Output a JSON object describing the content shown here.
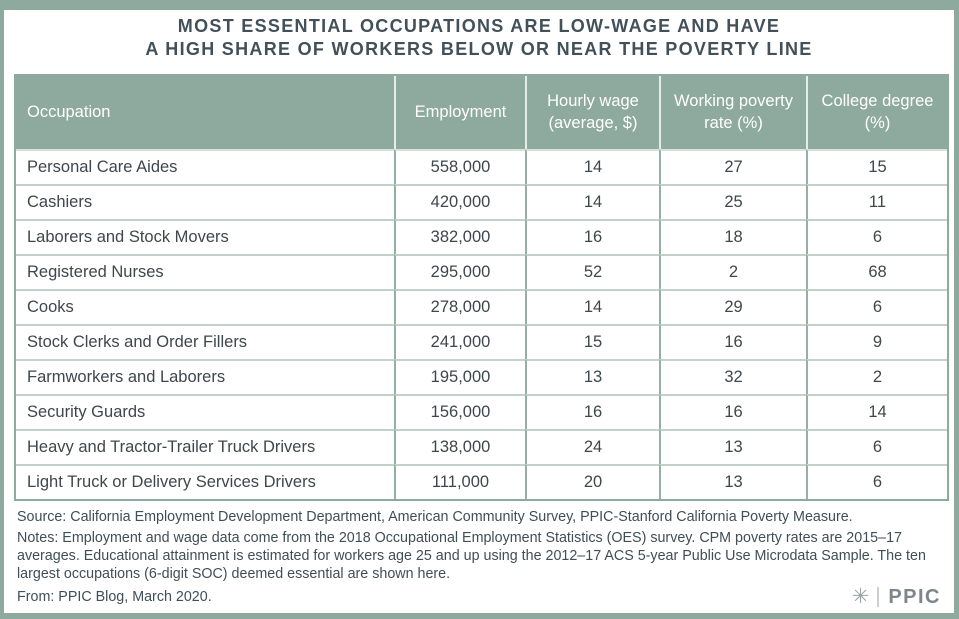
{
  "page": {
    "title_line1": "MOST ESSENTIAL OCCUPATIONS ARE LOW-WAGE AND HAVE",
    "title_line2": "A HIGH SHARE OF WORKERS BELOW OR NEAR THE POVERTY LINE"
  },
  "colors": {
    "accent_green": "#8EA99D",
    "header_text": "#FFFFFF",
    "row_divider": "#C2D1C9",
    "column_divider": "#95AFA3",
    "header_divider": "#E6EDE9",
    "text_dark": "#42505A",
    "logo_gray": "#7E868B"
  },
  "table": {
    "columns": [
      "Occupation",
      "Employment",
      "Hourly wage (average, $)",
      "Working poverty rate (%)",
      "College degree (%)"
    ],
    "rows": [
      [
        "Personal Care Aides",
        "558,000",
        "14",
        "27",
        "15"
      ],
      [
        "Cashiers",
        "420,000",
        "14",
        "25",
        "11"
      ],
      [
        "Laborers and Stock Movers",
        "382,000",
        "16",
        "18",
        "6"
      ],
      [
        "Registered Nurses",
        "295,000",
        "52",
        "2",
        "68"
      ],
      [
        "Cooks",
        "278,000",
        "14",
        "29",
        "6"
      ],
      [
        "Stock Clerks and Order Fillers",
        "241,000",
        "15",
        "16",
        "9"
      ],
      [
        "Farmworkers and Laborers",
        "195,000",
        "13",
        "32",
        "2"
      ],
      [
        "Security Guards",
        "156,000",
        "16",
        "16",
        "14"
      ],
      [
        "Heavy and Tractor-Trailer Truck Drivers",
        "138,000",
        "24",
        "13",
        "6"
      ],
      [
        "Light Truck or Delivery Services Drivers",
        "111,000",
        "20",
        "13",
        "6"
      ]
    ]
  },
  "footer": {
    "source": "Source: California Employment Development Department, American Community Survey, PPIC-Stanford California Poverty Measure.",
    "notes": "Notes: Employment and wage data come from the 2018 Occupational Employment Statistics (OES) survey.  CPM poverty rates are 2015–17 averages. Educational attainment is estimated for workers age 25 and up using the 2012–17 ACS 5-year Public Use Microdata Sample. The ten largest occupations (6-digit SOC) deemed essential are shown here.",
    "from": "From: PPIC Blog, March 2020.",
    "logo": {
      "icon": "starburst-icon",
      "glyph": "✳",
      "text": "PPIC"
    }
  },
  "chart_data": {
    "type": "table",
    "title": "MOST ESSENTIAL OCCUPATIONS ARE LOW-WAGE AND HAVE A HIGH SHARE OF WORKERS BELOW OR NEAR THE POVERTY LINE",
    "columns": [
      "Occupation",
      "Employment",
      "Hourly wage (average, $)",
      "Working poverty rate (%)",
      "College degree (%)"
    ],
    "rows": [
      {
        "occupation": "Personal Care Aides",
        "employment": 558000,
        "hourly_wage_avg_usd": 14,
        "working_poverty_rate_pct": 27,
        "college_degree_pct": 15
      },
      {
        "occupation": "Cashiers",
        "employment": 420000,
        "hourly_wage_avg_usd": 14,
        "working_poverty_rate_pct": 25,
        "college_degree_pct": 11
      },
      {
        "occupation": "Laborers and Stock Movers",
        "employment": 382000,
        "hourly_wage_avg_usd": 16,
        "working_poverty_rate_pct": 18,
        "college_degree_pct": 6
      },
      {
        "occupation": "Registered Nurses",
        "employment": 295000,
        "hourly_wage_avg_usd": 52,
        "working_poverty_rate_pct": 2,
        "college_degree_pct": 68
      },
      {
        "occupation": "Cooks",
        "employment": 278000,
        "hourly_wage_avg_usd": 14,
        "working_poverty_rate_pct": 29,
        "college_degree_pct": 6
      },
      {
        "occupation": "Stock Clerks and Order Fillers",
        "employment": 241000,
        "hourly_wage_avg_usd": 15,
        "working_poverty_rate_pct": 16,
        "college_degree_pct": 9
      },
      {
        "occupation": "Farmworkers and Laborers",
        "employment": 195000,
        "hourly_wage_avg_usd": 13,
        "working_poverty_rate_pct": 32,
        "college_degree_pct": 2
      },
      {
        "occupation": "Security Guards",
        "employment": 156000,
        "hourly_wage_avg_usd": 16,
        "working_poverty_rate_pct": 16,
        "college_degree_pct": 14
      },
      {
        "occupation": "Heavy and Tractor-Trailer Truck Drivers",
        "employment": 138000,
        "hourly_wage_avg_usd": 24,
        "working_poverty_rate_pct": 13,
        "college_degree_pct": 6
      },
      {
        "occupation": "Light Truck or Delivery Services Drivers",
        "employment": 111000,
        "hourly_wage_avg_usd": 20,
        "working_poverty_rate_pct": 13,
        "college_degree_pct": 6
      }
    ]
  }
}
